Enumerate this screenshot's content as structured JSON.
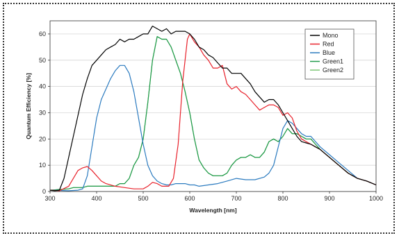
{
  "chart_data": {
    "type": "line",
    "xlabel": "Wavelength [nm]",
    "ylabel": "Quantum Efficiency [%]",
    "xlim": [
      300,
      1000
    ],
    "ylim": [
      0,
      65
    ],
    "xticks": [
      300,
      400,
      500,
      600,
      700,
      800,
      900,
      1000
    ],
    "yticks": [
      0,
      10,
      20,
      30,
      40,
      50,
      60
    ],
    "grid": "horizontal",
    "legend_position": "top-right",
    "series": [
      {
        "name": "Mono",
        "color": "#000000",
        "points": [
          [
            300,
            0.5
          ],
          [
            310,
            0.3
          ],
          [
            320,
            0.5
          ],
          [
            330,
            5
          ],
          [
            340,
            13
          ],
          [
            350,
            21
          ],
          [
            360,
            29
          ],
          [
            370,
            37
          ],
          [
            380,
            43
          ],
          [
            390,
            48
          ],
          [
            400,
            50
          ],
          [
            410,
            52
          ],
          [
            420,
            54
          ],
          [
            430,
            55
          ],
          [
            440,
            56
          ],
          [
            450,
            58
          ],
          [
            460,
            57
          ],
          [
            470,
            58
          ],
          [
            480,
            58
          ],
          [
            490,
            59
          ],
          [
            500,
            60
          ],
          [
            510,
            60
          ],
          [
            520,
            63
          ],
          [
            530,
            62
          ],
          [
            540,
            61
          ],
          [
            550,
            62
          ],
          [
            560,
            60
          ],
          [
            570,
            61
          ],
          [
            580,
            61
          ],
          [
            590,
            61
          ],
          [
            600,
            60
          ],
          [
            610,
            58
          ],
          [
            620,
            55
          ],
          [
            630,
            54
          ],
          [
            640,
            52
          ],
          [
            650,
            51
          ],
          [
            660,
            49
          ],
          [
            670,
            47
          ],
          [
            680,
            47
          ],
          [
            690,
            45
          ],
          [
            700,
            45
          ],
          [
            710,
            45
          ],
          [
            720,
            43
          ],
          [
            730,
            41
          ],
          [
            740,
            38
          ],
          [
            750,
            36
          ],
          [
            760,
            34
          ],
          [
            770,
            35
          ],
          [
            780,
            35
          ],
          [
            790,
            33
          ],
          [
            800,
            30
          ],
          [
            810,
            27
          ],
          [
            820,
            24
          ],
          [
            830,
            21
          ],
          [
            840,
            19
          ],
          [
            850,
            18.5
          ],
          [
            860,
            18
          ],
          [
            870,
            17
          ],
          [
            880,
            16
          ],
          [
            900,
            13
          ],
          [
            920,
            10
          ],
          [
            940,
            7
          ],
          [
            960,
            5
          ],
          [
            980,
            4
          ],
          [
            1000,
            2.5
          ]
        ]
      },
      {
        "name": "Red",
        "color": "#e8202a",
        "points": [
          [
            300,
            0.5
          ],
          [
            320,
            0.3
          ],
          [
            340,
            2
          ],
          [
            350,
            5
          ],
          [
            360,
            8
          ],
          [
            370,
            9
          ],
          [
            380,
            9.5
          ],
          [
            390,
            8
          ],
          [
            400,
            6
          ],
          [
            410,
            4
          ],
          [
            420,
            3
          ],
          [
            440,
            2
          ],
          [
            460,
            1.5
          ],
          [
            480,
            1
          ],
          [
            500,
            1
          ],
          [
            510,
            2
          ],
          [
            520,
            3.5
          ],
          [
            530,
            3
          ],
          [
            540,
            2
          ],
          [
            555,
            2
          ],
          [
            565,
            5
          ],
          [
            575,
            18
          ],
          [
            585,
            42
          ],
          [
            595,
            58
          ],
          [
            600,
            60
          ],
          [
            610,
            57
          ],
          [
            620,
            55
          ],
          [
            630,
            52
          ],
          [
            640,
            50
          ],
          [
            650,
            47
          ],
          [
            660,
            47
          ],
          [
            670,
            48
          ],
          [
            680,
            41
          ],
          [
            690,
            39
          ],
          [
            700,
            40
          ],
          [
            710,
            38
          ],
          [
            720,
            37
          ],
          [
            730,
            35
          ],
          [
            740,
            33
          ],
          [
            750,
            31
          ],
          [
            760,
            32
          ],
          [
            770,
            33
          ],
          [
            780,
            33
          ],
          [
            790,
            32
          ],
          [
            800,
            29
          ],
          [
            810,
            30
          ],
          [
            820,
            28
          ],
          [
            830,
            23
          ],
          [
            840,
            20
          ],
          [
            850,
            19
          ],
          [
            860,
            18
          ],
          [
            870,
            17
          ],
          [
            880,
            16
          ],
          [
            900,
            13
          ],
          [
            920,
            10
          ],
          [
            940,
            7
          ],
          [
            960,
            5
          ],
          [
            980,
            4
          ],
          [
            1000,
            2.5
          ]
        ]
      },
      {
        "name": "Blue",
        "color": "#2a7abf",
        "points": [
          [
            300,
            0.5
          ],
          [
            340,
            0.3
          ],
          [
            360,
            0.5
          ],
          [
            370,
            1
          ],
          [
            380,
            6
          ],
          [
            390,
            17
          ],
          [
            400,
            28
          ],
          [
            410,
            35
          ],
          [
            420,
            39
          ],
          [
            430,
            43
          ],
          [
            440,
            46
          ],
          [
            450,
            48
          ],
          [
            460,
            48
          ],
          [
            470,
            45
          ],
          [
            480,
            38
          ],
          [
            490,
            28
          ],
          [
            500,
            18
          ],
          [
            510,
            10
          ],
          [
            520,
            6
          ],
          [
            530,
            4
          ],
          [
            540,
            3
          ],
          [
            550,
            2.5
          ],
          [
            560,
            2.5
          ],
          [
            570,
            3
          ],
          [
            580,
            3
          ],
          [
            590,
            3
          ],
          [
            600,
            2.5
          ],
          [
            610,
            2.5
          ],
          [
            620,
            2
          ],
          [
            640,
            2.5
          ],
          [
            660,
            3
          ],
          [
            680,
            4
          ],
          [
            700,
            5
          ],
          [
            720,
            4.5
          ],
          [
            740,
            4.5
          ],
          [
            760,
            5.5
          ],
          [
            770,
            7
          ],
          [
            780,
            10
          ],
          [
            790,
            17
          ],
          [
            800,
            24
          ],
          [
            810,
            27
          ],
          [
            820,
            26
          ],
          [
            830,
            24
          ],
          [
            840,
            22
          ],
          [
            850,
            21
          ],
          [
            860,
            21
          ],
          [
            870,
            19
          ],
          [
            880,
            17
          ],
          [
            900,
            14
          ],
          [
            920,
            11
          ],
          [
            940,
            8
          ],
          [
            960,
            5
          ],
          [
            980,
            4
          ],
          [
            1000,
            2.5
          ]
        ]
      },
      {
        "name": "Green1",
        "color": "#1f9a4a",
        "points": [
          [
            300,
            0.5
          ],
          [
            340,
            1
          ],
          [
            350,
            1.5
          ],
          [
            370,
            1.5
          ],
          [
            380,
            2
          ],
          [
            400,
            2
          ],
          [
            420,
            2
          ],
          [
            440,
            2
          ],
          [
            450,
            3
          ],
          [
            460,
            3
          ],
          [
            470,
            5
          ],
          [
            480,
            10
          ],
          [
            490,
            13
          ],
          [
            500,
            20
          ],
          [
            510,
            34
          ],
          [
            520,
            50
          ],
          [
            530,
            59
          ],
          [
            540,
            58
          ],
          [
            550,
            58
          ],
          [
            560,
            55
          ],
          [
            570,
            50
          ],
          [
            580,
            45
          ],
          [
            590,
            38
          ],
          [
            600,
            30
          ],
          [
            610,
            20
          ],
          [
            620,
            12
          ],
          [
            630,
            9
          ],
          [
            640,
            7
          ],
          [
            650,
            6
          ],
          [
            660,
            6
          ],
          [
            670,
            6
          ],
          [
            680,
            7
          ],
          [
            690,
            10
          ],
          [
            700,
            12
          ],
          [
            710,
            13
          ],
          [
            720,
            13
          ],
          [
            730,
            14
          ],
          [
            740,
            13
          ],
          [
            750,
            13
          ],
          [
            760,
            15
          ],
          [
            770,
            19
          ],
          [
            780,
            20
          ],
          [
            790,
            19
          ],
          [
            800,
            21
          ],
          [
            810,
            24
          ],
          [
            820,
            22
          ],
          [
            830,
            22
          ],
          [
            840,
            21
          ],
          [
            850,
            20
          ],
          [
            860,
            20
          ],
          [
            870,
            18
          ],
          [
            880,
            16
          ],
          [
            900,
            13
          ],
          [
            920,
            10
          ],
          [
            940,
            7
          ],
          [
            960,
            5
          ],
          [
            980,
            4
          ],
          [
            1000,
            2.5
          ]
        ]
      },
      {
        "name": "Green2",
        "color": "#7cc576",
        "points": [
          [
            300,
            0.5
          ],
          [
            340,
            1
          ],
          [
            350,
            1.5
          ],
          [
            370,
            1.5
          ],
          [
            380,
            2
          ],
          [
            400,
            2
          ],
          [
            420,
            2
          ],
          [
            440,
            2
          ],
          [
            450,
            3
          ],
          [
            460,
            3
          ],
          [
            470,
            5
          ],
          [
            480,
            10
          ],
          [
            490,
            13
          ],
          [
            500,
            20
          ],
          [
            510,
            34
          ],
          [
            520,
            50
          ],
          [
            530,
            59
          ],
          [
            540,
            58
          ],
          [
            550,
            58
          ],
          [
            560,
            55
          ],
          [
            570,
            50
          ],
          [
            580,
            45
          ],
          [
            590,
            38
          ],
          [
            600,
            30
          ],
          [
            610,
            20
          ],
          [
            620,
            12
          ],
          [
            630,
            9
          ],
          [
            640,
            7
          ],
          [
            650,
            6
          ],
          [
            660,
            6
          ],
          [
            670,
            6
          ],
          [
            680,
            7
          ],
          [
            690,
            10
          ],
          [
            700,
            12
          ],
          [
            710,
            13
          ],
          [
            720,
            13
          ],
          [
            730,
            14
          ],
          [
            740,
            13
          ],
          [
            750,
            13
          ],
          [
            760,
            15
          ],
          [
            770,
            19
          ],
          [
            780,
            20
          ],
          [
            790,
            19
          ],
          [
            800,
            21
          ],
          [
            810,
            24
          ],
          [
            820,
            22
          ],
          [
            830,
            22
          ],
          [
            840,
            21
          ],
          [
            850,
            20
          ],
          [
            860,
            20
          ],
          [
            870,
            18
          ],
          [
            880,
            16
          ],
          [
            900,
            13
          ],
          [
            920,
            10
          ],
          [
            940,
            7
          ],
          [
            960,
            5
          ],
          [
            980,
            4
          ],
          [
            1000,
            2.5
          ]
        ]
      }
    ]
  }
}
